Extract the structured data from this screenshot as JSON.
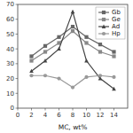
{
  "chart_data": {
    "type": "line",
    "xlabel": "MC, wt%",
    "x": [
      2,
      4,
      6,
      8,
      10,
      12,
      14
    ],
    "series": [
      {
        "name": "Gb",
        "color": "#666666",
        "marker": "square",
        "values": [
          35,
          42,
          48,
          55,
          48,
          43,
          38
        ]
      },
      {
        "name": "Ge",
        "color": "#888888",
        "marker": "square",
        "values": [
          32,
          38,
          44,
          52,
          44,
          38,
          35
        ]
      },
      {
        "name": "Ad",
        "color": "#444444",
        "marker": "triangle",
        "values": [
          25,
          32,
          40,
          65,
          32,
          20,
          13
        ]
      },
      {
        "name": "Hp",
        "color": "#999999",
        "marker": "circle",
        "values": [
          22,
          22,
          20,
          14,
          21,
          22,
          21
        ]
      }
    ],
    "xlim": [
      0,
      16
    ],
    "ylim": [
      0,
      70
    ],
    "xticks": [
      0,
      2,
      4,
      6,
      8,
      10,
      12,
      14
    ],
    "yticks": [
      0,
      10,
      20,
      30,
      40,
      50,
      60,
      70
    ],
    "grid": false,
    "legend": "upper right"
  }
}
